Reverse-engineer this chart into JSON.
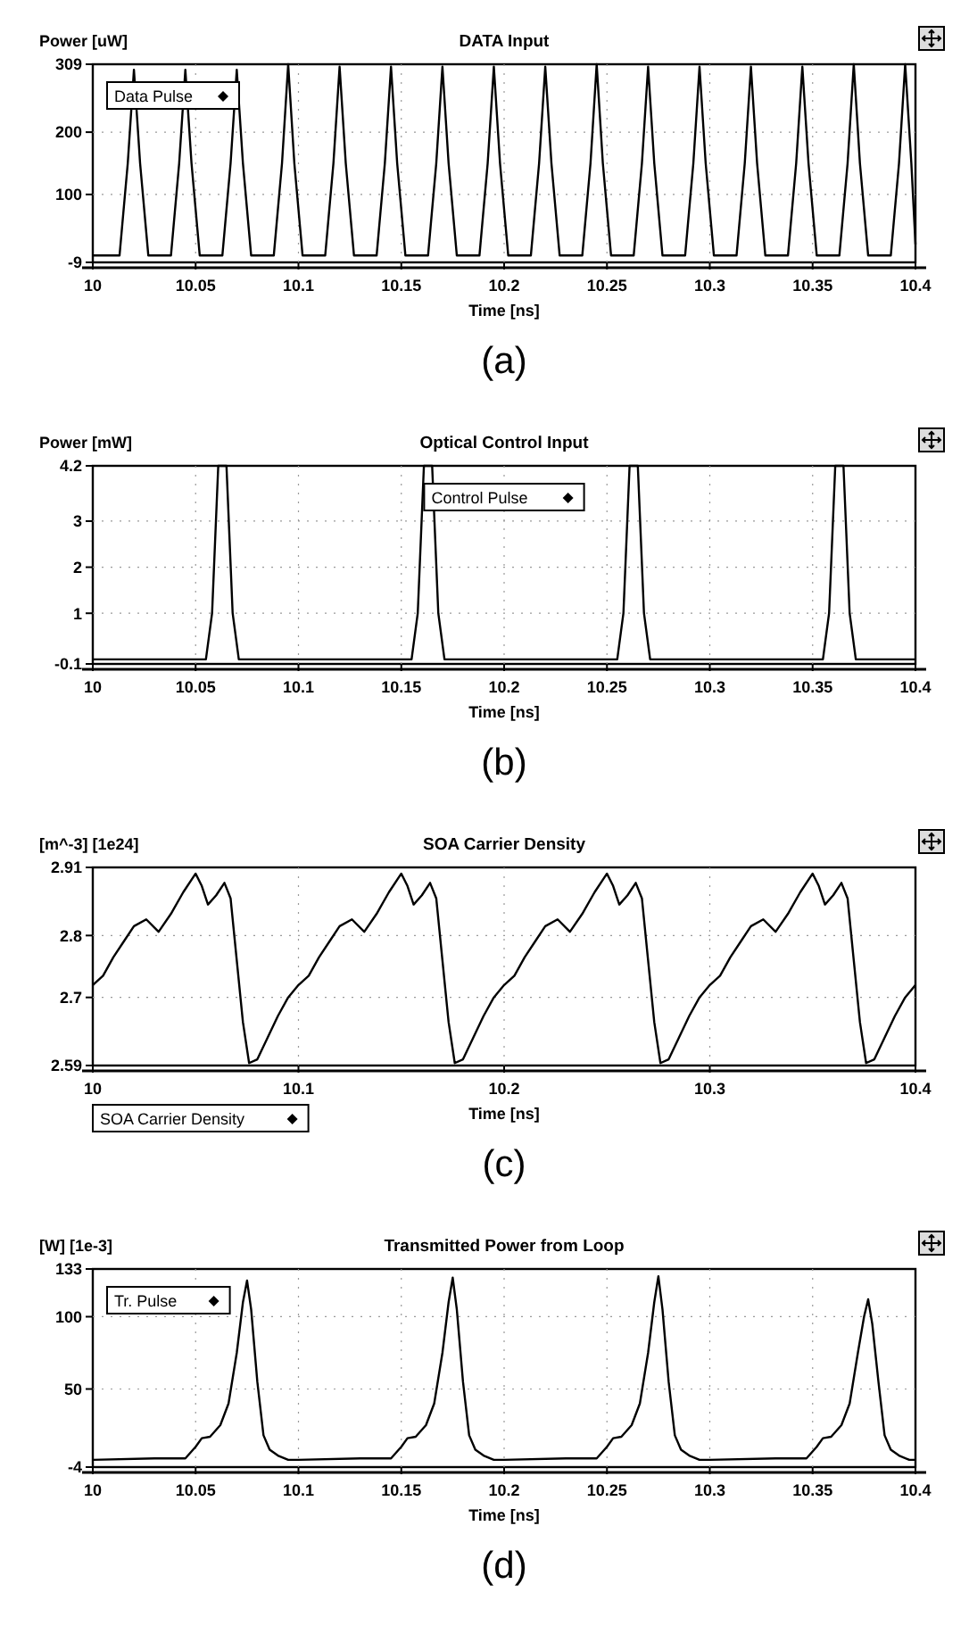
{
  "chart_data": [
    {
      "type": "line",
      "title": "DATA Input",
      "ylabel": "Power [uW]",
      "xlabel": "Time [ns]",
      "annotations": [
        "(a)"
      ],
      "legend": "top left",
      "grid": true,
      "xlim": [
        10,
        10.4
      ],
      "ylim": [
        -9,
        309
      ],
      "xticks": [
        10,
        10.05,
        10.1,
        10.15,
        10.2,
        10.25,
        10.3,
        10.35,
        10.4
      ],
      "yticks": [
        -9,
        100,
        200,
        309
      ],
      "series": [
        {
          "name": "Data Pulse",
          "color": "#000000",
          "x": [
            10,
            10.013,
            10.017,
            10.02,
            10.023,
            10.027,
            10.038,
            10.042,
            10.045,
            10.048,
            10.052,
            10.063,
            10.067,
            10.07,
            10.073,
            10.077,
            10.088,
            10.092,
            10.095,
            10.098,
            10.102,
            10.113,
            10.117,
            10.12,
            10.123,
            10.127,
            10.138,
            10.142,
            10.145,
            10.148,
            10.152,
            10.163,
            10.167,
            10.17,
            10.173,
            10.177,
            10.188,
            10.192,
            10.195,
            10.198,
            10.202,
            10.213,
            10.217,
            10.22,
            10.223,
            10.227,
            10.238,
            10.242,
            10.245,
            10.248,
            10.252,
            10.263,
            10.267,
            10.27,
            10.273,
            10.277,
            10.288,
            10.292,
            10.295,
            10.298,
            10.302,
            10.313,
            10.317,
            10.32,
            10.323,
            10.327,
            10.338,
            10.342,
            10.345,
            10.348,
            10.352,
            10.363,
            10.367,
            10.37,
            10.373,
            10.377,
            10.388,
            10.392,
            10.395,
            10.398,
            10.4
          ],
          "values": [
            2,
            2,
            150,
            300,
            150,
            2,
            2,
            150,
            300,
            150,
            2,
            2,
            150,
            300,
            150,
            2,
            2,
            150,
            309,
            150,
            2,
            2,
            150,
            305,
            150,
            2,
            2,
            150,
            305,
            150,
            2,
            2,
            150,
            305,
            150,
            2,
            2,
            150,
            305,
            150,
            2,
            2,
            150,
            305,
            150,
            2,
            2,
            150,
            309,
            150,
            2,
            2,
            150,
            305,
            150,
            2,
            2,
            150,
            305,
            150,
            2,
            2,
            150,
            305,
            150,
            2,
            2,
            150,
            305,
            150,
            2,
            2,
            150,
            309,
            150,
            2,
            2,
            150,
            309,
            150,
            20
          ]
        }
      ]
    },
    {
      "type": "line",
      "title": "Optical Control Input",
      "ylabel": "Power [mW]",
      "xlabel": "Time [ns]",
      "annotations": [
        "(b)"
      ],
      "legend": "top",
      "grid": true,
      "xlim": [
        10,
        10.4
      ],
      "ylim": [
        -0.1,
        4.2
      ],
      "xticks": [
        10,
        10.05,
        10.1,
        10.15,
        10.2,
        10.25,
        10.3,
        10.35,
        10.4
      ],
      "yticks": [
        -0.1,
        1,
        2,
        3,
        4.2
      ],
      "series": [
        {
          "name": "Control Pulse",
          "color": "#000000",
          "x": [
            10,
            10.055,
            10.058,
            10.061,
            10.065,
            10.068,
            10.071,
            10.155,
            10.158,
            10.161,
            10.165,
            10.168,
            10.171,
            10.255,
            10.258,
            10.261,
            10.265,
            10.268,
            10.271,
            10.355,
            10.358,
            10.361,
            10.365,
            10.368,
            10.371,
            10.4
          ],
          "values": [
            0,
            0,
            1,
            4.2,
            4.2,
            1,
            0,
            0,
            1,
            4.2,
            4.2,
            1,
            0,
            0,
            1,
            4.2,
            4.2,
            1,
            0,
            0,
            1,
            4.2,
            4.2,
            1,
            0,
            0
          ]
        }
      ]
    },
    {
      "type": "line",
      "title": "SOA Carrier Density",
      "ylabel": "[m^-3] [1e24]",
      "xlabel": "Time [ns]",
      "annotations": [
        "(c)"
      ],
      "legend": "bottom left",
      "grid": true,
      "xlim": [
        10,
        10.4
      ],
      "ylim": [
        2.59,
        2.91
      ],
      "xticks": [
        10,
        10.1,
        10.2,
        10.3,
        10.4
      ],
      "yticks": [
        2.59,
        2.7,
        2.8,
        2.91
      ],
      "series": [
        {
          "name": "SOA Carrier Density",
          "color": "#000000",
          "x": [
            10,
            10.005,
            10.01,
            10.015,
            10.02,
            10.026,
            10.032,
            10.038,
            10.044,
            10.05,
            10.053,
            10.056,
            10.06,
            10.064,
            10.067,
            10.07,
            10.073,
            10.076,
            10.08,
            10.085,
            10.09,
            10.095,
            10.1,
            10.105,
            10.11,
            10.115,
            10.12,
            10.126,
            10.132,
            10.138,
            10.144,
            10.15,
            10.153,
            10.156,
            10.16,
            10.164,
            10.167,
            10.17,
            10.173,
            10.176,
            10.18,
            10.185,
            10.19,
            10.195,
            10.2,
            10.205,
            10.21,
            10.215,
            10.22,
            10.226,
            10.232,
            10.238,
            10.244,
            10.25,
            10.253,
            10.256,
            10.26,
            10.264,
            10.267,
            10.27,
            10.273,
            10.276,
            10.28,
            10.285,
            10.29,
            10.295,
            10.3,
            10.305,
            10.31,
            10.315,
            10.32,
            10.326,
            10.332,
            10.338,
            10.344,
            10.35,
            10.353,
            10.356,
            10.36,
            10.364,
            10.367,
            10.37,
            10.373,
            10.376,
            10.38,
            10.385,
            10.39,
            10.395,
            10.4
          ],
          "values": [
            2.72,
            2.735,
            2.765,
            2.79,
            2.815,
            2.826,
            2.806,
            2.835,
            2.87,
            2.9,
            2.88,
            2.85,
            2.865,
            2.885,
            2.86,
            2.76,
            2.66,
            2.594,
            2.6,
            2.635,
            2.67,
            2.7,
            2.72,
            2.735,
            2.765,
            2.79,
            2.815,
            2.826,
            2.806,
            2.835,
            2.87,
            2.9,
            2.88,
            2.85,
            2.865,
            2.885,
            2.86,
            2.76,
            2.66,
            2.594,
            2.6,
            2.635,
            2.67,
            2.7,
            2.72,
            2.735,
            2.765,
            2.79,
            2.815,
            2.826,
            2.806,
            2.835,
            2.87,
            2.9,
            2.88,
            2.85,
            2.865,
            2.885,
            2.86,
            2.76,
            2.66,
            2.594,
            2.6,
            2.635,
            2.67,
            2.7,
            2.72,
            2.735,
            2.765,
            2.79,
            2.815,
            2.826,
            2.806,
            2.835,
            2.87,
            2.9,
            2.88,
            2.85,
            2.865,
            2.885,
            2.86,
            2.76,
            2.66,
            2.594,
            2.6,
            2.635,
            2.67,
            2.7,
            2.72
          ]
        }
      ]
    },
    {
      "type": "line",
      "title": "Transmitted Power from Loop",
      "ylabel": "[W] [1e-3]",
      "xlabel": "Time [ns]",
      "annotations": [
        "(d)"
      ],
      "legend": "top left",
      "grid": true,
      "xlim": [
        10,
        10.4
      ],
      "ylim": [
        -4,
        133
      ],
      "xticks": [
        10,
        10.05,
        10.1,
        10.15,
        10.2,
        10.25,
        10.3,
        10.35,
        10.4
      ],
      "yticks": [
        -4,
        50,
        100,
        133
      ],
      "series": [
        {
          "name": "Tr. Pulse",
          "color": "#000000",
          "x": [
            10,
            10.03,
            10.045,
            10.05,
            10.053,
            10.057,
            10.062,
            10.066,
            10.07,
            10.073,
            10.075,
            10.077,
            10.08,
            10.083,
            10.086,
            10.09,
            10.095,
            10.1,
            10.13,
            10.145,
            10.15,
            10.153,
            10.157,
            10.162,
            10.166,
            10.17,
            10.173,
            10.175,
            10.177,
            10.18,
            10.183,
            10.186,
            10.19,
            10.195,
            10.2,
            10.23,
            10.245,
            10.25,
            10.253,
            10.257,
            10.262,
            10.266,
            10.27,
            10.273,
            10.275,
            10.277,
            10.28,
            10.283,
            10.286,
            10.29,
            10.295,
            10.3,
            10.332,
            10.347,
            10.352,
            10.355,
            10.359,
            10.364,
            10.368,
            10.372,
            10.375,
            10.377,
            10.379,
            10.382,
            10.385,
            10.388,
            10.392,
            10.397,
            10.4
          ],
          "values": [
            1,
            2,
            2,
            10,
            16,
            17,
            25,
            40,
            75,
            110,
            125,
            105,
            55,
            18,
            8,
            4,
            1,
            1,
            2,
            2,
            10,
            16,
            17,
            25,
            40,
            75,
            110,
            127,
            105,
            55,
            18,
            8,
            4,
            1,
            1,
            2,
            2,
            10,
            16,
            17,
            25,
            40,
            75,
            110,
            128,
            105,
            55,
            18,
            8,
            4,
            1,
            1,
            2,
            2,
            10,
            16,
            17,
            25,
            40,
            75,
            100,
            112,
            95,
            55,
            18,
            8,
            4,
            1,
            1
          ]
        }
      ]
    }
  ]
}
